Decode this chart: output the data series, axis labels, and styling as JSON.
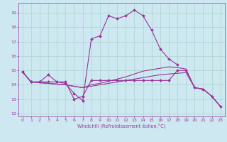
{
  "xlabel": "Windchill (Refroidissement éolien,°C)",
  "background_color": "#cde8f0",
  "line_color": "#993399",
  "grid_color": "#aad4cc",
  "xlim": [
    -0.5,
    23.5
  ],
  "ylim": [
    11.8,
    19.7
  ],
  "yticks": [
    12,
    13,
    14,
    15,
    16,
    17,
    18,
    19
  ],
  "xticks": [
    0,
    1,
    2,
    3,
    4,
    5,
    6,
    7,
    8,
    9,
    10,
    11,
    12,
    13,
    14,
    15,
    16,
    17,
    18,
    19,
    20,
    21,
    22,
    23
  ],
  "s1_x": [
    0,
    1,
    2,
    3,
    4,
    5,
    6,
    7,
    8,
    9,
    10,
    11,
    12,
    13,
    14,
    15,
    16,
    17,
    18,
    19,
    20,
    21,
    22,
    23
  ],
  "s1_y": [
    14.9,
    14.2,
    14.2,
    14.7,
    14.2,
    14.2,
    13.0,
    13.2,
    14.3,
    14.3,
    14.3,
    14.3,
    14.3,
    14.3,
    14.3,
    14.3,
    14.3,
    14.3,
    15.0,
    15.0,
    13.8,
    13.7,
    13.2,
    12.5
  ],
  "s2_x": [
    0,
    1,
    2,
    3,
    4,
    5,
    6,
    7,
    8,
    9,
    10,
    11,
    12,
    13,
    14,
    15,
    16,
    17,
    18
  ],
  "s2_y": [
    14.9,
    14.2,
    14.2,
    14.2,
    14.2,
    14.1,
    13.4,
    12.9,
    17.2,
    17.4,
    18.8,
    18.6,
    18.8,
    19.2,
    18.8,
    17.8,
    16.5,
    15.8,
    15.4
  ],
  "s3_x": [
    0,
    1,
    2,
    3,
    4,
    5,
    6,
    7,
    8,
    9,
    10,
    11,
    12,
    13,
    14,
    15,
    16,
    17,
    18,
    19,
    20,
    21,
    22,
    23
  ],
  "s3_y": [
    14.9,
    14.2,
    14.15,
    14.1,
    14.05,
    14.0,
    13.9,
    13.8,
    13.9,
    14.0,
    14.1,
    14.2,
    14.3,
    14.4,
    14.5,
    14.6,
    14.7,
    14.75,
    14.8,
    14.85,
    13.8,
    13.7,
    13.2,
    12.5
  ],
  "s4_x": [
    0,
    1,
    2,
    3,
    4,
    5,
    6,
    7,
    8,
    9,
    10,
    11,
    12,
    13,
    14,
    15,
    16,
    17,
    18,
    19,
    20,
    21,
    22,
    23
  ],
  "s4_y": [
    14.9,
    14.2,
    14.15,
    14.1,
    14.05,
    14.0,
    13.9,
    13.8,
    14.0,
    14.1,
    14.25,
    14.4,
    14.55,
    14.75,
    14.95,
    15.05,
    15.15,
    15.25,
    15.2,
    15.1,
    13.8,
    13.7,
    13.2,
    12.5
  ]
}
